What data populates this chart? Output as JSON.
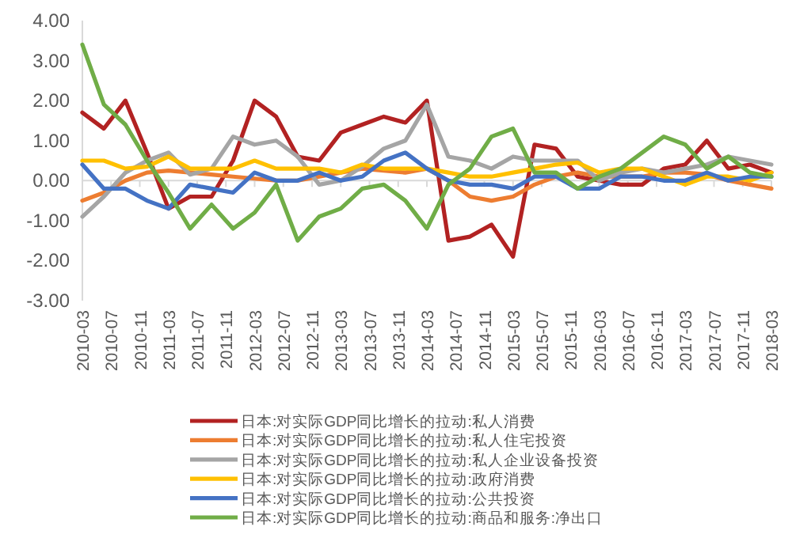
{
  "chart_data": {
    "type": "line",
    "legend": "bottom",
    "line_style": "solid",
    "marker": "none",
    "x": [
      "2010-03",
      "2010-06",
      "2010-09",
      "2010-12",
      "2011-03",
      "2011-06",
      "2011-09",
      "2011-12",
      "2012-03",
      "2012-06",
      "2012-09",
      "2012-12",
      "2013-03",
      "2013-06",
      "2013-09",
      "2013-12",
      "2014-03",
      "2014-06",
      "2014-09",
      "2014-12",
      "2015-03",
      "2015-06",
      "2015-09",
      "2015-12",
      "2016-03",
      "2016-06",
      "2016-09",
      "2016-12",
      "2017-03",
      "2017-06",
      "2017-09",
      "2017-12",
      "2018-03"
    ],
    "xlim": [
      "2010-03",
      "2018-03"
    ],
    "xticks": [
      "2010-03",
      "2010-07",
      "2010-11",
      "2011-03",
      "2011-07",
      "2011-11",
      "2012-03",
      "2012-07",
      "2012-11",
      "2013-03",
      "2013-07",
      "2013-11",
      "2014-03",
      "2014-07",
      "2014-11",
      "2015-03",
      "2015-07",
      "2015-11",
      "2016-03",
      "2016-07",
      "2016-11",
      "2017-03",
      "2017-07",
      "2017-11",
      "2018-03"
    ],
    "ylim": [
      -3,
      4
    ],
    "yticks": [
      {
        "value": 4,
        "label": "4.00"
      },
      {
        "value": 3,
        "label": "3.00"
      },
      {
        "value": 2,
        "label": "2.00"
      },
      {
        "value": 1,
        "label": "1.00"
      },
      {
        "value": 0,
        "label": "0.00"
      },
      {
        "value": -1,
        "label": "-1.00"
      },
      {
        "value": -2,
        "label": "-2.00"
      },
      {
        "value": -3,
        "label": "-3.00"
      }
    ],
    "series": [
      {
        "name": "日本:对实际GDP同比增长的拉动:私人消费",
        "color": "#b22222",
        "values": [
          1.7,
          1.3,
          2.0,
          0.7,
          -0.7,
          -0.4,
          -0.4,
          0.5,
          2.0,
          1.6,
          0.6,
          0.5,
          1.2,
          1.4,
          1.6,
          1.45,
          2.0,
          -1.5,
          -1.4,
          -1.1,
          -1.9,
          0.9,
          0.8,
          0.1,
          0.0,
          -0.1,
          -0.1,
          0.3,
          0.4,
          1.0,
          0.3,
          0.4,
          0.2
        ]
      },
      {
        "name": "日本:对实际GDP同比增长的拉动:私人住宅投资",
        "color": "#ed7d31",
        "values": [
          -0.5,
          -0.3,
          0.0,
          0.2,
          0.25,
          0.2,
          0.15,
          0.1,
          0.05,
          0.0,
          0.0,
          0.1,
          0.2,
          0.3,
          0.25,
          0.2,
          0.3,
          0.0,
          -0.4,
          -0.5,
          -0.4,
          -0.1,
          0.1,
          0.2,
          0.1,
          0.1,
          0.1,
          0.2,
          0.2,
          0.15,
          0.0,
          -0.1,
          -0.2
        ]
      },
      {
        "name": "日本:对实际GDP同比增长的拉动:私人企业设备投资",
        "color": "#a5a5a5",
        "values": [
          -0.9,
          -0.4,
          0.2,
          0.5,
          0.7,
          0.15,
          0.3,
          1.1,
          0.9,
          1.0,
          0.6,
          -0.1,
          0.0,
          0.35,
          0.8,
          1.0,
          1.9,
          0.6,
          0.5,
          0.3,
          0.6,
          0.5,
          0.5,
          0.5,
          0.0,
          0.2,
          0.3,
          0.2,
          0.3,
          0.4,
          0.6,
          0.5,
          0.4
        ]
      },
      {
        "name": "日本:对实际GDP同比增长的拉动:政府消费",
        "color": "#ffc000",
        "values": [
          0.5,
          0.5,
          0.3,
          0.35,
          0.6,
          0.3,
          0.3,
          0.3,
          0.5,
          0.3,
          0.3,
          0.3,
          0.2,
          0.4,
          0.3,
          0.3,
          0.3,
          0.2,
          0.1,
          0.1,
          0.2,
          0.3,
          0.4,
          0.45,
          0.2,
          0.3,
          0.3,
          0.1,
          -0.1,
          0.1,
          0.1,
          0.0,
          0.2
        ]
      },
      {
        "name": "日本:对实际GDP同比增长的拉动:公共投资",
        "color": "#4472c4",
        "values": [
          0.4,
          -0.2,
          -0.2,
          -0.5,
          -0.7,
          -0.1,
          -0.2,
          -0.3,
          0.2,
          0.0,
          0.0,
          0.2,
          0.0,
          0.1,
          0.5,
          0.7,
          0.3,
          0.0,
          -0.1,
          -0.1,
          -0.2,
          0.1,
          0.1,
          -0.2,
          -0.2,
          0.1,
          0.1,
          0.0,
          0.0,
          0.2,
          0.0,
          0.1,
          0.1
        ]
      },
      {
        "name": "日本:对实际GDP同比增长的拉动:商品和服务:净出口",
        "color": "#70ad47",
        "values": [
          3.4,
          1.9,
          1.4,
          0.5,
          -0.3,
          -1.2,
          -0.6,
          -1.2,
          -0.8,
          -0.1,
          -1.5,
          -0.9,
          -0.7,
          -0.2,
          -0.1,
          -0.5,
          -1.2,
          -0.1,
          0.3,
          1.1,
          1.3,
          0.2,
          0.2,
          -0.2,
          0.1,
          0.3,
          0.7,
          1.1,
          0.9,
          0.3,
          0.6,
          0.2,
          0.1
        ]
      }
    ]
  }
}
